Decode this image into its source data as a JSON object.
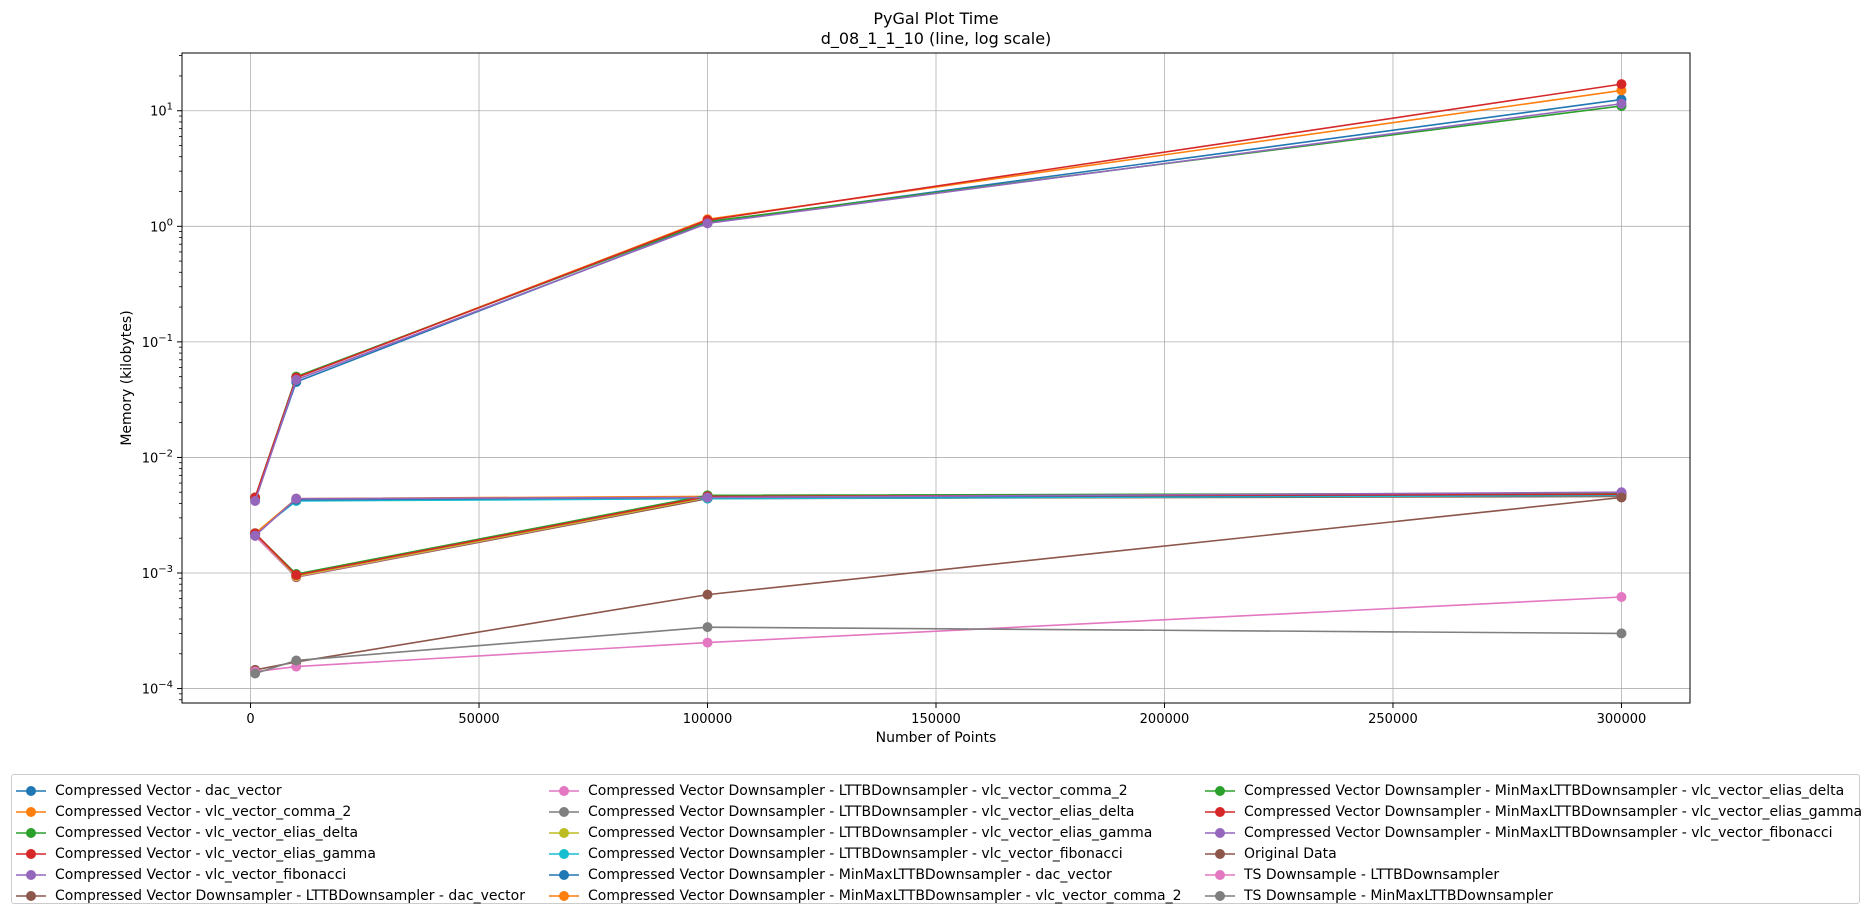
{
  "chart_data": {
    "type": "line",
    "title": "PyGal Plot Time",
    "subtitle": "d_08_1_1_10 (line, log scale)",
    "xlabel": "Number of Points",
    "ylabel": "Memory (kilobytes)",
    "x_scale": "linear",
    "y_scale": "log",
    "xlim": [
      -15000,
      315000
    ],
    "ylim": [
      7.5e-05,
      31.6
    ],
    "x_ticks": [
      0,
      50000,
      100000,
      150000,
      200000,
      250000,
      300000
    ],
    "x_tick_labels": [
      "0",
      "50000",
      "100000",
      "150000",
      "200000",
      "250000",
      "300000"
    ],
    "y_ticks": [
      0.0001,
      0.001,
      0.01,
      0.1,
      1,
      10
    ],
    "y_tick_labels": [
      {
        "base": "10",
        "exp": "−4"
      },
      {
        "base": "10",
        "exp": "−3"
      },
      {
        "base": "10",
        "exp": "−2"
      },
      {
        "base": "10",
        "exp": "−1"
      },
      {
        "base": "10",
        "exp": "0"
      },
      {
        "base": "10",
        "exp": "1"
      }
    ],
    "grid": true,
    "legend_position": "bottom",
    "x": [
      1000,
      10000,
      100000,
      300000
    ],
    "series": [
      {
        "name": "Compressed Vector - dac_vector",
        "color": "#1f77b4",
        "values": [
          0.0044,
          0.045,
          1.08,
          12.5
        ]
      },
      {
        "name": "Compressed Vector - vlc_vector_comma_2",
        "color": "#ff7f0e",
        "values": [
          0.0045,
          0.049,
          1.15,
          15.0
        ]
      },
      {
        "name": "Compressed Vector - vlc_vector_elias_delta",
        "color": "#2ca02c",
        "values": [
          0.0045,
          0.05,
          1.1,
          11.0
        ]
      },
      {
        "name": "Compressed Vector - vlc_vector_elias_gamma",
        "color": "#d62728",
        "values": [
          0.0045,
          0.049,
          1.13,
          17.0
        ]
      },
      {
        "name": "Compressed Vector - vlc_vector_fibonacci",
        "color": "#9467bd",
        "values": [
          0.0042,
          0.047,
          1.06,
          11.5
        ]
      },
      {
        "name": "Compressed Vector Downsampler - LTTBDownsampler - dac_vector",
        "color": "#8c564b",
        "values": [
          0.0021,
          0.00092,
          0.0044,
          0.0046
        ]
      },
      {
        "name": "Compressed Vector Downsampler - LTTBDownsampler - vlc_vector_comma_2",
        "color": "#e377c2",
        "values": [
          0.0021,
          0.00093,
          0.0045,
          0.0047
        ]
      },
      {
        "name": "Compressed Vector Downsampler - LTTBDownsampler - vlc_vector_elias_delta",
        "color": "#7f7f7f",
        "values": [
          0.0022,
          0.00095,
          0.0046,
          0.0048
        ]
      },
      {
        "name": "Compressed Vector Downsampler - LTTBDownsampler - vlc_vector_elias_gamma",
        "color": "#bcbd22",
        "values": [
          0.0022,
          0.00094,
          0.0045,
          0.0047
        ]
      },
      {
        "name": "Compressed Vector Downsampler - LTTBDownsampler - vlc_vector_fibonacci",
        "color": "#17becf",
        "values": [
          0.0022,
          0.0042,
          0.0044,
          0.0047
        ]
      },
      {
        "name": "Compressed Vector Downsampler - MinMaxLTTBDownsampler - dac_vector",
        "color": "#1f77b4",
        "values": [
          0.0022,
          0.0043,
          0.0045,
          0.0048
        ]
      },
      {
        "name": "Compressed Vector Downsampler - MinMaxLTTBDownsampler - vlc_vector_comma_2",
        "color": "#ff7f0e",
        "values": [
          0.0022,
          0.0044,
          0.0046,
          0.0049
        ]
      },
      {
        "name": "Compressed Vector Downsampler - MinMaxLTTBDownsampler - vlc_vector_elias_delta",
        "color": "#2ca02c",
        "values": [
          0.0022,
          0.00098,
          0.0047,
          0.0049
        ]
      },
      {
        "name": "Compressed Vector Downsampler - MinMaxLTTBDownsampler - vlc_vector_elias_gamma",
        "color": "#d62728",
        "values": [
          0.0022,
          0.00096,
          0.0046,
          0.0048
        ]
      },
      {
        "name": "Compressed Vector Downsampler - MinMaxLTTBDownsampler - vlc_vector_fibonacci",
        "color": "#9467bd",
        "values": [
          0.0021,
          0.0044,
          0.0045,
          0.005
        ]
      },
      {
        "name": "Original Data",
        "color": "#8c564b",
        "values": [
          0.000145,
          0.00017,
          0.00065,
          0.0045
        ]
      },
      {
        "name": "TS Downsample - LTTBDownsampler",
        "color": "#e377c2",
        "values": [
          0.00014,
          0.000155,
          0.00025,
          0.00062
        ]
      },
      {
        "name": "TS Downsample - MinMaxLTTBDownsampler",
        "color": "#7f7f7f",
        "values": [
          0.000135,
          0.000175,
          0.00034,
          0.0003
        ]
      }
    ]
  }
}
